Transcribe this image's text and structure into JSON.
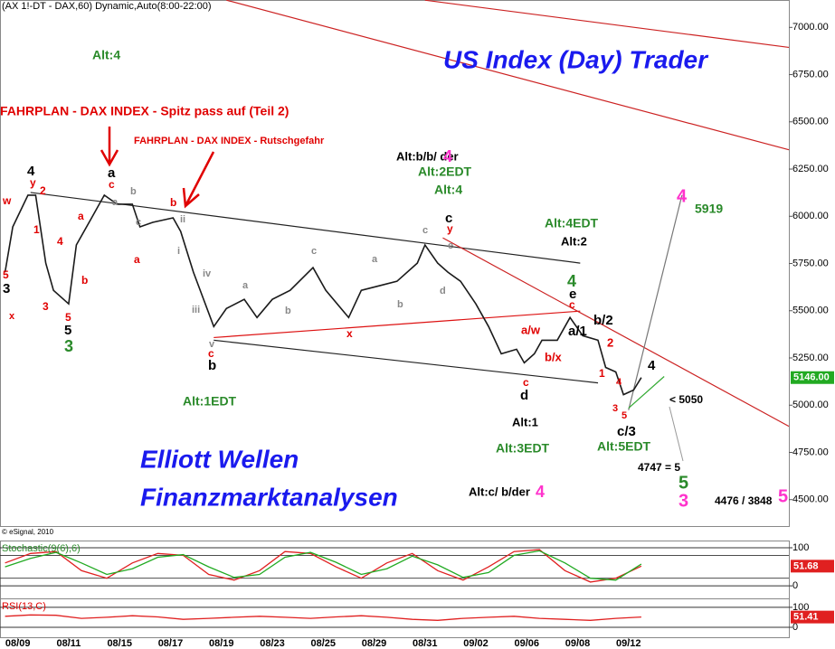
{
  "chart_data": [
    {
      "type": "line",
      "header": "(AX 1!-DT - DAX,60) Dynamic,Auto(8:00-22:00)",
      "title": "US Index (Day) Trader",
      "watermark": [
        "Elliott Wellen",
        "Finanzmarktanalysen"
      ],
      "copyright": "© eSignal, 2010",
      "x": [
        -0.5,
        -0.2,
        0.4,
        0.7,
        1.1,
        1.4,
        2.0,
        2.3,
        2.9,
        3.4,
        3.9,
        4.5,
        4.8,
        5.3,
        6.1,
        6.4,
        6.9,
        7.7,
        8.2,
        8.9,
        9.4,
        10.0,
        10.7,
        11.6,
        12.1,
        13.0,
        13.5,
        14.2,
        14.9,
        15.7,
        16.0,
        16.5,
        16.9,
        17.4,
        18.0,
        18.5,
        19.0,
        19.6,
        19.9,
        20.3,
        20.6,
        21.2,
        21.7,
        22.2,
        22.8,
        23.1,
        23.5,
        23.8,
        24.2,
        24.5
      ],
      "series": [
        {
          "name": "DAX",
          "color": "#1a1a1a",
          "values": [
            5704,
            5944,
            6112,
            6112,
            5752,
            5608,
            5536,
            5848,
            5992,
            6112,
            6064,
            6064,
            5944,
            5968,
            5992,
            5920,
            5704,
            5416,
            5512,
            5560,
            5464,
            5560,
            5608,
            5728,
            5608,
            5464,
            5608,
            5632,
            5656,
            5752,
            5848,
            5752,
            5704,
            5656,
            5536,
            5416,
            5272,
            5296,
            5224,
            5272,
            5344,
            5344,
            5464,
            5368,
            5344,
            5200,
            5176,
            5056,
            5080,
            5146
          ]
        }
      ],
      "last_price": {
        "value": 5146,
        "label": "5146.00",
        "color": "#22aa22"
      },
      "xlim": [
        -0.7,
        30.3
      ],
      "ylim": [
        4360,
        7145
      ],
      "xticks": [
        {
          "value": 0,
          "label": "08/09"
        },
        {
          "value": 2,
          "label": "08/11"
        },
        {
          "value": 4,
          "label": "08/15"
        },
        {
          "value": 6,
          "label": "08/17"
        },
        {
          "value": 8,
          "label": "08/19"
        },
        {
          "value": 10,
          "label": "08/23"
        },
        {
          "value": 12,
          "label": "08/25"
        },
        {
          "value": 14,
          "label": "08/29"
        },
        {
          "value": 16,
          "label": "08/31"
        },
        {
          "value": 18,
          "label": "09/02"
        },
        {
          "value": 20,
          "label": "09/06"
        },
        {
          "value": 22,
          "label": "09/08"
        },
        {
          "value": 24,
          "label": "09/12"
        }
      ],
      "yticks": [
        {
          "value": 4500,
          "label": "4500.00"
        },
        {
          "value": 4750,
          "label": "4750.00"
        },
        {
          "value": 5000,
          "label": "5000.00"
        },
        {
          "value": 5250,
          "label": "5250.00"
        },
        {
          "value": 5500,
          "label": "5500.00"
        },
        {
          "value": 5750,
          "label": "5750.00"
        },
        {
          "value": 6000,
          "label": "6000.00"
        },
        {
          "value": 6250,
          "label": "6250.00"
        },
        {
          "value": 6500,
          "label": "6500.00"
        },
        {
          "value": 6750,
          "label": "6750.00"
        },
        {
          "value": 7000,
          "label": "7000.00"
        }
      ],
      "trendlines": [
        {
          "color": "#cc2222",
          "x": [
            16.0,
            30.3
          ],
          "y": [
            7144,
            6894
          ]
        },
        {
          "color": "#cc2222",
          "x": [
            8.2,
            30.3
          ],
          "y": [
            7144,
            6352
          ]
        },
        {
          "color": "#222222",
          "x": [
            0.5,
            22.1
          ],
          "y": [
            6126,
            5752
          ]
        },
        {
          "color": "#222222",
          "x": [
            7.7,
            22.8
          ],
          "y": [
            5344,
            5118
          ]
        },
        {
          "color": "#dd1111",
          "x": [
            7.7,
            22.1
          ],
          "y": [
            5358,
            5498
          ]
        },
        {
          "color": "#cc2222",
          "x": [
            16.7,
            30.3
          ],
          "y": [
            5886,
            4888
          ]
        },
        {
          "color": "#777777",
          "x": [
            24.0,
            26.1
          ],
          "y": [
            4974,
            6112
          ]
        },
        {
          "color": "#33aa33",
          "x": [
            24.0,
            25.4
          ],
          "y": [
            4984,
            5152
          ]
        }
      ],
      "annotations": [
        {
          "text": "Alt:4",
          "color": "#2a8a2a"
        },
        {
          "text": "FAHRPLAN - DAX INDEX - Spitz pass auf (Teil 2)",
          "color": "#e00000"
        },
        {
          "text": "FAHRPLAN - DAX INDEX - Rutschgefahr",
          "color": "#e00000"
        },
        {
          "text": "Alt:b/b/  der",
          "color": "#000"
        },
        {
          "text": "4",
          "color": "#ff33cc"
        },
        {
          "text": "Alt:2EDT",
          "color": "#2a8a2a"
        },
        {
          "text": "Alt:4",
          "color": "#2a8a2a"
        },
        {
          "text": "c",
          "color": "#000"
        },
        {
          "text": "y",
          "color": "#e00000"
        },
        {
          "text": "Alt:4EDT",
          "color": "#2a8a2a"
        },
        {
          "text": "Alt:2",
          "color": "#000"
        },
        {
          "text": "4",
          "color": "#ff33cc"
        },
        {
          "text": "5919",
          "color": "#2a8a2a"
        },
        {
          "text": "4",
          "color": "#2a8a2a"
        },
        {
          "text": "e",
          "color": "#000"
        },
        {
          "text": "c",
          "color": "#e00000"
        },
        {
          "text": "b/2",
          "color": "#000"
        },
        {
          "text": "a/w",
          "color": "#e00000"
        },
        {
          "text": "a/1",
          "color": "#000"
        },
        {
          "text": "b/x",
          "color": "#e00000"
        },
        {
          "text": "2",
          "color": "#e00000"
        },
        {
          "text": "1",
          "color": "#e00000"
        },
        {
          "text": "4",
          "color": "#000"
        },
        {
          "text": "c",
          "color": "#e00000"
        },
        {
          "text": "d",
          "color": "#000"
        },
        {
          "text": "Alt:1",
          "color": "#000"
        },
        {
          "text": "Alt:3EDT",
          "color": "#2a8a2a"
        },
        {
          "text": "c/3",
          "color": "#000"
        },
        {
          "text": "Alt:5EDT",
          "color": "#2a8a2a"
        },
        {
          "text": "< 5050",
          "color": "#000"
        },
        {
          "text": "4747 = 5",
          "color": "#000"
        },
        {
          "text": "5",
          "color": "#2a8a2a"
        },
        {
          "text": "3",
          "color": "#ff33cc"
        },
        {
          "text": "4476 / 3848",
          "color": "#000"
        },
        {
          "text": "5",
          "color": "#ff33cc"
        },
        {
          "text": "Alt:c/ b/der",
          "color": "#000"
        },
        {
          "text": "4",
          "color": "#ff33cc"
        },
        {
          "text": "Alt:1EDT",
          "color": "#2a8a2a"
        },
        {
          "text": "4",
          "color": "#000"
        },
        {
          "text": "y",
          "color": "#e00000"
        },
        {
          "text": "2",
          "color": "#e00000"
        },
        {
          "text": "w",
          "color": "#e00000"
        },
        {
          "text": "1",
          "color": "#e00000"
        },
        {
          "text": "4",
          "color": "#e00000"
        },
        {
          "text": "5",
          "color": "#e00000"
        },
        {
          "text": "3",
          "color": "#000"
        },
        {
          "text": "x",
          "color": "#e00000"
        },
        {
          "text": "3",
          "color": "#e00000"
        },
        {
          "text": "5",
          "color": "#e00000"
        },
        {
          "text": "5",
          "color": "#000"
        },
        {
          "text": "3",
          "color": "#2a8a2a"
        },
        {
          "text": "a",
          "color": "#e00000"
        },
        {
          "text": "b",
          "color": "#e00000"
        },
        {
          "text": "a",
          "color": "#000"
        },
        {
          "text": "c",
          "color": "#e00000"
        },
        {
          "text": "b",
          "color": "#888"
        },
        {
          "text": "a",
          "color": "#888"
        },
        {
          "text": "b",
          "color": "#e00000"
        },
        {
          "text": "ii",
          "color": "#888"
        },
        {
          "text": "c",
          "color": "#888"
        },
        {
          "text": "a",
          "color": "#e00000"
        },
        {
          "text": "i",
          "color": "#888"
        },
        {
          "text": "iv",
          "color": "#888"
        },
        {
          "text": "iii",
          "color": "#888"
        },
        {
          "text": "v",
          "color": "#888"
        },
        {
          "text": "c",
          "color": "#e00000"
        },
        {
          "text": "b",
          "color": "#000"
        },
        {
          "text": "a",
          "color": "#888"
        },
        {
          "text": "b",
          "color": "#888"
        },
        {
          "text": "c",
          "color": "#888"
        },
        {
          "text": "x",
          "color": "#e00000"
        },
        {
          "text": "a",
          "color": "#888"
        },
        {
          "text": "b",
          "color": "#888"
        },
        {
          "text": "c",
          "color": "#888"
        },
        {
          "text": "d",
          "color": "#888"
        },
        {
          "text": "e",
          "color": "#888"
        },
        {
          "text": "3",
          "color": "#e00000"
        },
        {
          "text": "5",
          "color": "#e00000"
        },
        {
          "text": "4",
          "color": "#e00000"
        }
      ]
    },
    {
      "type": "line",
      "title": "Stochastic(9(6),6)",
      "title_color": "#2a8a2a",
      "xlim": [
        -0.7,
        30.3
      ],
      "ylim": [
        -33,
        119
      ],
      "yticks": [
        0,
        100
      ],
      "levels": [
        80,
        20
      ],
      "x": [
        -0.5,
        0.5,
        1.5,
        2.5,
        3.5,
        4.5,
        5.5,
        6.5,
        7.5,
        8.5,
        9.5,
        10.5,
        11.5,
        12.5,
        13.5,
        14.5,
        15.5,
        16.5,
        17.5,
        18.5,
        19.5,
        20.5,
        21.5,
        22.5,
        23.5,
        24.5
      ],
      "series": [
        {
          "name": "%K",
          "color": "#e02020",
          "values": [
            60,
            85,
            90,
            40,
            20,
            60,
            85,
            80,
            30,
            15,
            40,
            90,
            85,
            50,
            20,
            60,
            85,
            40,
            15,
            50,
            90,
            95,
            40,
            10,
            20,
            51.68
          ],
          "last_label": "51.68"
        },
        {
          "name": "%D",
          "color": "#22aa22",
          "values": [
            50,
            72,
            88,
            60,
            30,
            45,
            75,
            82,
            50,
            22,
            30,
            75,
            88,
            62,
            30,
            45,
            78,
            55,
            22,
            35,
            80,
            92,
            60,
            20,
            15,
            57
          ]
        }
      ]
    },
    {
      "type": "line",
      "title": "RSI(13,C)",
      "title_color": "#e00000",
      "xlim": [
        -0.7,
        30.3
      ],
      "ylim": [
        -50,
        145
      ],
      "yticks": [
        0,
        100
      ],
      "x": [
        -0.5,
        0.5,
        1.5,
        2.5,
        3.5,
        4.5,
        5.5,
        6.5,
        7.5,
        8.5,
        9.5,
        10.5,
        11.5,
        12.5,
        13.5,
        14.5,
        15.5,
        16.5,
        17.5,
        18.5,
        19.5,
        20.5,
        21.5,
        22.5,
        23.5,
        24.5
      ],
      "series": [
        {
          "name": "RSI",
          "color": "#e02020",
          "values": [
            55,
            62,
            60,
            45,
            50,
            58,
            52,
            40,
            45,
            50,
            55,
            50,
            45,
            52,
            58,
            50,
            40,
            35,
            45,
            50,
            55,
            45,
            40,
            35,
            45,
            51.41
          ],
          "last_label": "51.41"
        }
      ]
    }
  ]
}
